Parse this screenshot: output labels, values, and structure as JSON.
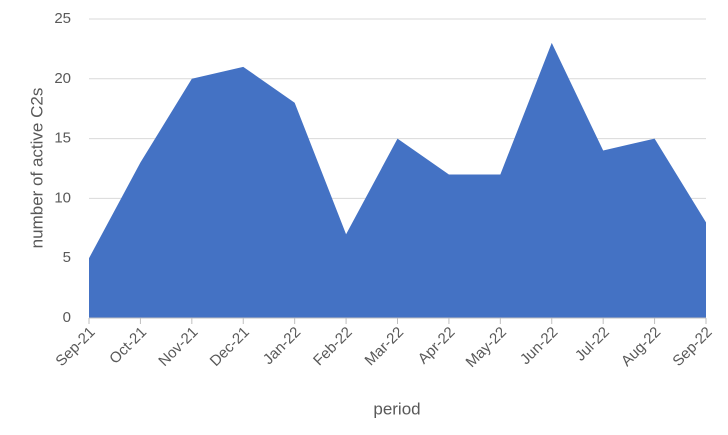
{
  "chart_data": {
    "type": "area",
    "x_label": "period",
    "y_label": "number of active C2s",
    "categories": [
      "Sep-21",
      "Oct-21",
      "Nov-21",
      "Dec-21",
      "Jan-22",
      "Feb-22",
      "Mar-22",
      "Apr-22",
      "May-22",
      "Jun-22",
      "Jul-22",
      "Aug-22",
      "Sep-22"
    ],
    "values": [
      5,
      13,
      20,
      21,
      18,
      7,
      15,
      12,
      12,
      23,
      14,
      15,
      8
    ],
    "color": "#4472c4",
    "ylim": [
      0,
      25
    ],
    "yticks": [
      0,
      5,
      10,
      15,
      20,
      25
    ],
    "grid": true
  }
}
